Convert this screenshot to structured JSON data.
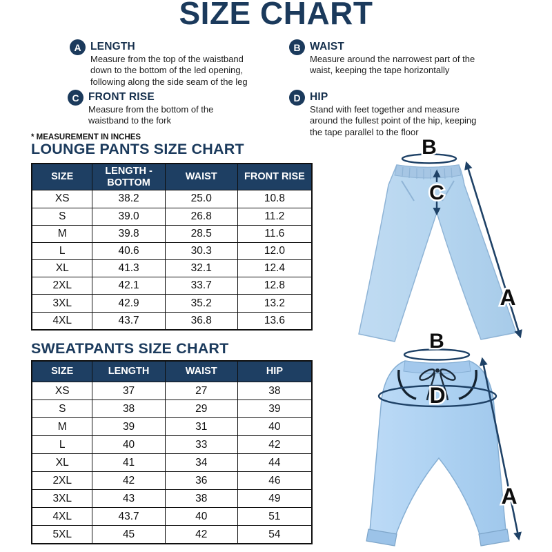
{
  "title": "SIZE CHART",
  "note": "* MEASUREMENT IN INCHES",
  "colors": {
    "navy_heading": "#1b3a5c",
    "table_header_bg": "#1e3f63",
    "table_border": "#0f0f0f",
    "arrow_navy": "#1e4166",
    "pants_light_blue": "#b5d5ef",
    "sweatpants_light_blue": "#aed2f2"
  },
  "definitions": [
    {
      "letter": "A",
      "title": "LENGTH",
      "description": "Measure from the top of the waistband down to the bottom of the led opening, following along the side seam of the leg"
    },
    {
      "letter": "B",
      "title": "WAIST",
      "description": "Measure around the narrowest part of the waist, keeping the tape horizontally"
    },
    {
      "letter": "C",
      "title": "FRONT RISE",
      "description": "Measure from the bottom of the waistband to the fork"
    },
    {
      "letter": "D",
      "title": "HIP",
      "description": "Stand with feet together and measure around the fullest point of the hip, keeping the tape parallel to the floor"
    }
  ],
  "lounge_table": {
    "title": "LOUNGE PANTS SIZE CHART",
    "headers": [
      "SIZE",
      "LENGTH - BOTTOM",
      "WAIST",
      "FRONT RISE"
    ],
    "rows": [
      [
        "XS",
        "38.2",
        "25.0",
        "10.8"
      ],
      [
        "S",
        "39.0",
        "26.8",
        "11.2"
      ],
      [
        "M",
        "39.8",
        "28.5",
        "11.6"
      ],
      [
        "L",
        "40.6",
        "30.3",
        "12.0"
      ],
      [
        "XL",
        "41.3",
        "32.1",
        "12.4"
      ],
      [
        "2XL",
        "42.1",
        "33.7",
        "12.8"
      ],
      [
        "3XL",
        "42.9",
        "35.2",
        "13.2"
      ],
      [
        "4XL",
        "43.7",
        "36.8",
        "13.6"
      ]
    ]
  },
  "sweat_table": {
    "title": "SWEATPANTS SIZE CHART",
    "headers": [
      "SIZE",
      "LENGTH",
      "WAIST",
      "HIP"
    ],
    "rows": [
      [
        "XS",
        "37",
        "27",
        "38"
      ],
      [
        "S",
        "38",
        "29",
        "39"
      ],
      [
        "M",
        "39",
        "31",
        "40"
      ],
      [
        "L",
        "40",
        "33",
        "42"
      ],
      [
        "XL",
        "41",
        "34",
        "44"
      ],
      [
        "2XL",
        "42",
        "36",
        "46"
      ],
      [
        "3XL",
        "43",
        "38",
        "49"
      ],
      [
        "4XL",
        "43.7",
        "40",
        "51"
      ],
      [
        "5XL",
        "45",
        "42",
        "54"
      ]
    ]
  },
  "diagrams": {
    "lounge_pants": {
      "label_a": "A",
      "label_b": "B",
      "label_c": "C"
    },
    "sweatpants": {
      "label_a": "A",
      "label_b": "B",
      "label_d": "D"
    }
  }
}
